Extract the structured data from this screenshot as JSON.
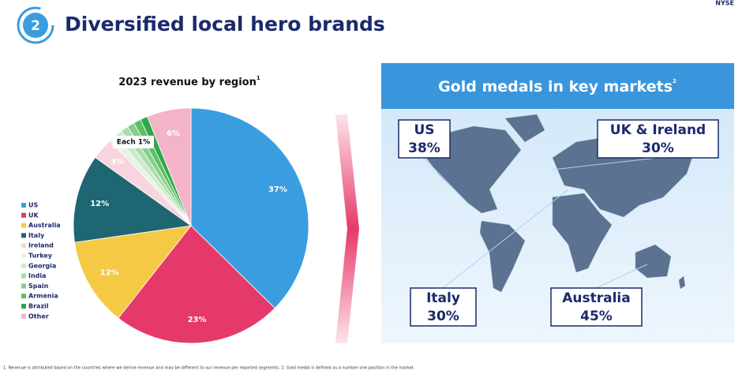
{
  "header": {
    "number": "2",
    "title": "Diversified local hero brands",
    "exchange": "NYSE"
  },
  "chart_data": {
    "type": "pie",
    "title": "2023 revenue by region",
    "title_footnote": "1",
    "categories": [
      "US",
      "UK",
      "Australia",
      "Italy",
      "Ireland",
      "Turkey",
      "Georgia",
      "India",
      "Spain",
      "Armenia",
      "Brazil",
      "Other"
    ],
    "values": [
      37,
      23,
      12,
      12,
      3,
      1,
      1,
      1,
      1,
      1,
      1,
      6
    ],
    "value_labels": [
      "37%",
      "23%",
      "12%",
      "12%",
      "3%",
      null,
      null,
      null,
      null,
      null,
      null,
      "6%"
    ],
    "colors": [
      "#3a9de0",
      "#e6396b",
      "#f6c945",
      "#1f6673",
      "#f8d5de",
      "#e6f4e6",
      "#cbeacc",
      "#a9dcab",
      "#86cf8a",
      "#5ebf64",
      "#2ea84b",
      "#f3b4c7"
    ],
    "annotation": "Each 1%",
    "legend": "left"
  },
  "map_panel": {
    "title": "Gold medals in key markets",
    "title_footnote": "2",
    "markets": [
      {
        "name": "US",
        "share": "38%"
      },
      {
        "name": "UK & Ireland",
        "share": "30%"
      },
      {
        "name": "Italy",
        "share": "30%"
      },
      {
        "name": "Australia",
        "share": "45%"
      }
    ]
  },
  "footnote": "1. Revenue is attributed based on the countries where we derive revenue and may be different to our revenue per reported segments. 2. Gold medal is defined as a number one position in the market."
}
